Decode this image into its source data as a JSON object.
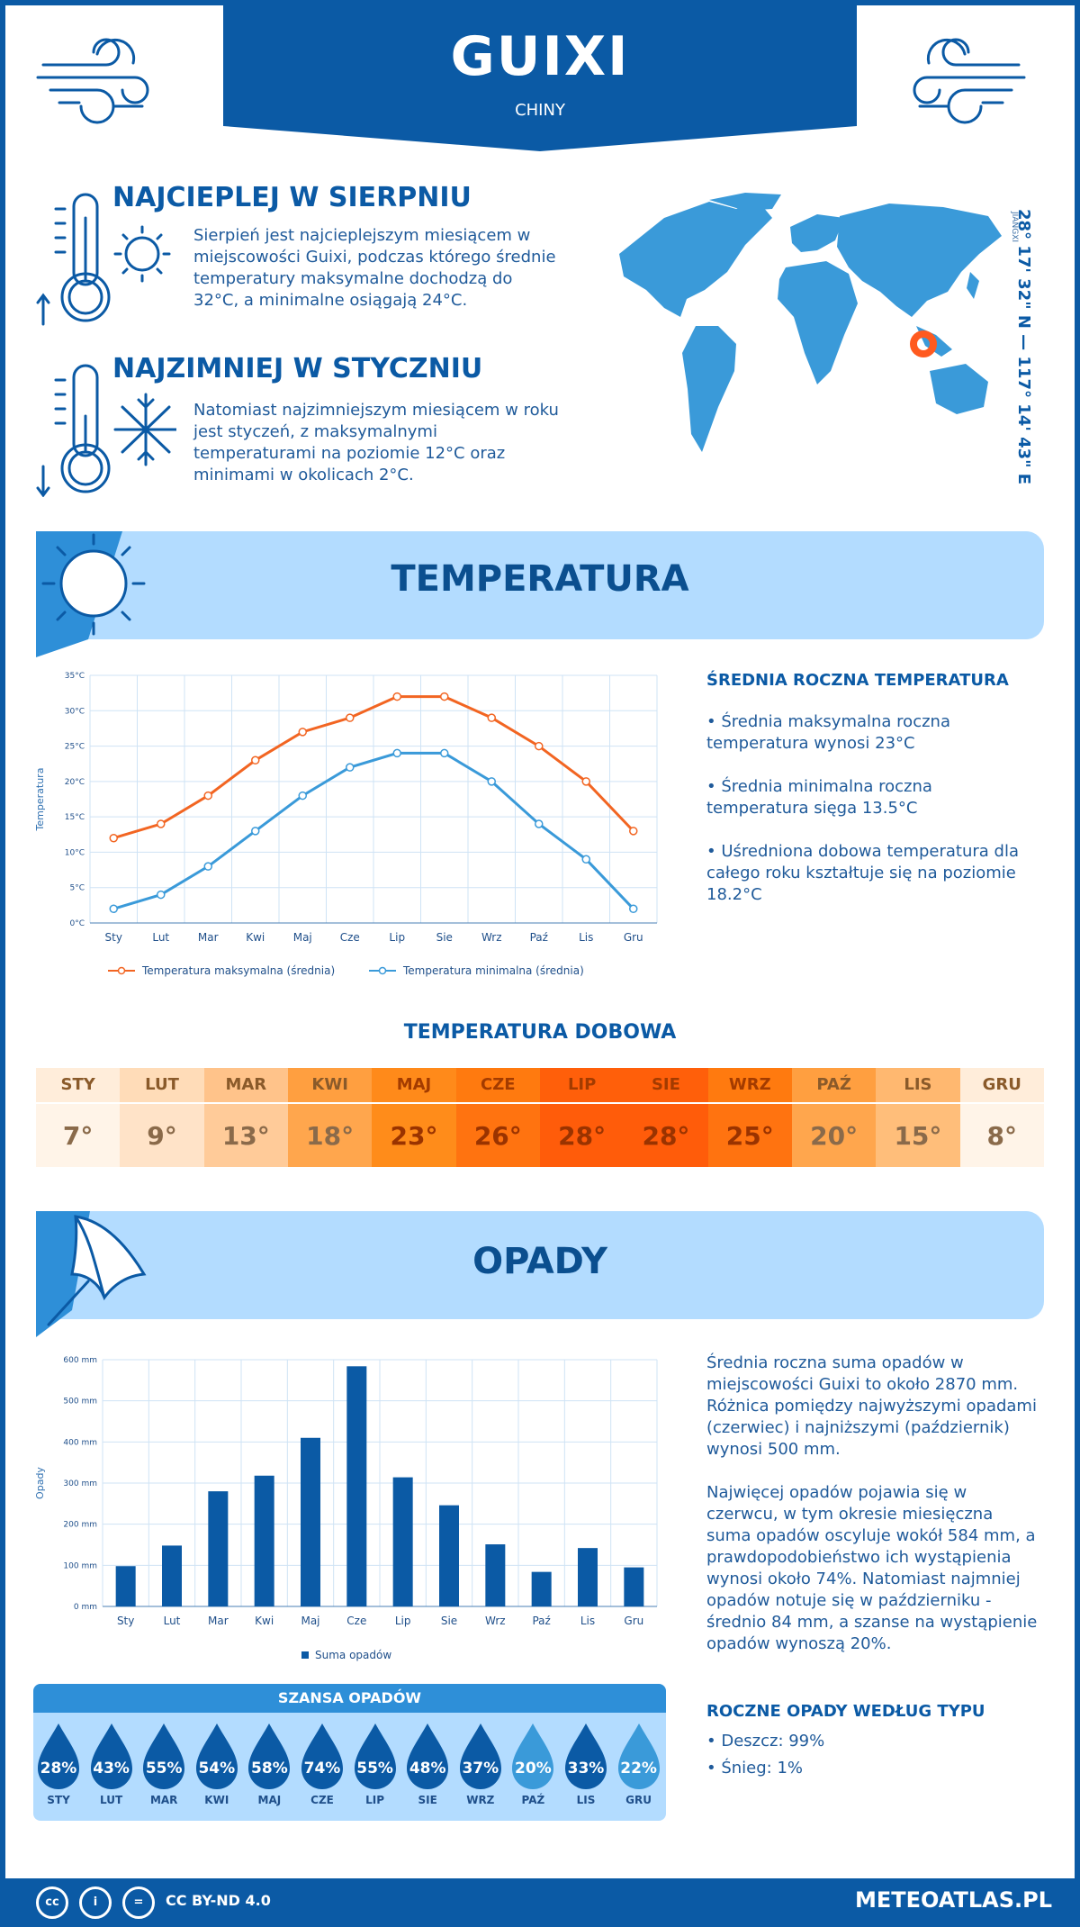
{
  "header": {
    "city": "GUIXI",
    "country": "CHINY"
  },
  "warmest": {
    "title": "NAJCIEPLEJ W SIERPNIU",
    "text": "Sierpień jest najcieplejszym miesiącem w miejscowości Guixi, podczas którego średnie temperatury maksymalne dochodzą do 32°C, a minimalne osiągają 24°C."
  },
  "coldest": {
    "title": "NAJZIMNIEJ W STYCZNIU",
    "text": "Natomiast najzimniejszym miesiącem w roku jest styczeń, z maksymalnymi temperaturami na poziomie 12°C oraz minimami w okolicach 2°C."
  },
  "location": {
    "coords": "28° 17' 32\" N — 117° 14' 43\" E",
    "province": "JIANGXI"
  },
  "temperature_section": {
    "title": "TEMPERATURA"
  },
  "annual_temp": {
    "title": "ŚREDNIA ROCZNA TEMPERATURA",
    "max": "• Średnia maksymalna roczna temperatura wynosi 23°C",
    "min": "• Średnia minimalna roczna temperatura sięga 13.5°C",
    "avg": "• Uśredniona dobowa temperatura dla całego roku kształtuje się na poziomie 18.2°C"
  },
  "daily": {
    "title": "TEMPERATURA DOBOWA",
    "months": [
      "STY",
      "LUT",
      "MAR",
      "KWI",
      "MAJ",
      "CZE",
      "LIP",
      "SIE",
      "WRZ",
      "PAŹ",
      "LIS",
      "GRU"
    ],
    "values": [
      "7°",
      "9°",
      "13°",
      "18°",
      "23°",
      "26°",
      "28°",
      "28°",
      "25°",
      "20°",
      "15°",
      "8°"
    ],
    "head_colors": [
      "#ffedda",
      "#ffdcb8",
      "#ffc38a",
      "#ff9f40",
      "#ff8a1a",
      "#ff7a0f",
      "#ff5f0a",
      "#ff5f0a",
      "#ff7a0f",
      "#ff9f40",
      "#ffb870",
      "#ffedda"
    ],
    "val_colors": [
      "#fff4e8",
      "#ffe3c8",
      "#ffcb99",
      "#ffa64d",
      "#ff8c1a",
      "#ff7310",
      "#ff5c0a",
      "#ff5c0a",
      "#ff7310",
      "#ffa64d",
      "#ffbe7a",
      "#fff4e8"
    ]
  },
  "precip_section": {
    "title": "OPADY"
  },
  "precip_text": {
    "p1": "Średnia roczna suma opadów w miejscowości Guixi to około 2870 mm. Różnica pomiędzy najwyższymi opadami (czerwiec) i najniższymi (październik) wynosi 500 mm.",
    "p2": "Najwięcej opadów pojawia się w czerwcu, w tym okresie miesięczna suma opadów oscyluje wokół 584 mm, a prawdopodobieństwo ich wystąpienia wynosi około 74%. Natomiast najmniej opadów notuje się w październiku - średnio 84 mm, a szanse na wystąpienie opadów wynoszą 20%."
  },
  "precip_type": {
    "title": "ROCZNE OPADY WEDŁUG TYPU",
    "rain": "• Deszcz: 99%",
    "snow": "• Śnieg: 1%"
  },
  "chance": {
    "title": "SZANSA OPADÓW",
    "months": [
      "STY",
      "LUT",
      "MAR",
      "KWI",
      "MAJ",
      "CZE",
      "LIP",
      "SIE",
      "WRZ",
      "PAŹ",
      "LIS",
      "GRU"
    ],
    "values": [
      "28%",
      "43%",
      "55%",
      "54%",
      "58%",
      "74%",
      "55%",
      "48%",
      "37%",
      "20%",
      "33%",
      "22%"
    ],
    "levels": [
      "dark",
      "dark",
      "dark",
      "dark",
      "dark",
      "dark",
      "dark",
      "dark",
      "dark",
      "light",
      "dark",
      "light"
    ]
  },
  "footer": {
    "license": "CC BY-ND 4.0",
    "site": "METEOATLAS.PL"
  },
  "colors": {
    "brand": "#0b5aa5",
    "max_line": "#f26522",
    "min_line": "#3a9ad9",
    "bar": "#0b5aa5"
  },
  "chart_data": [
    {
      "type": "line",
      "ylabel": "Temperatura",
      "categories": [
        "Sty",
        "Lut",
        "Mar",
        "Kwi",
        "Maj",
        "Cze",
        "Lip",
        "Sie",
        "Wrz",
        "Paź",
        "Lis",
        "Gru"
      ],
      "yticks": [
        "0°C",
        "5°C",
        "10°C",
        "15°C",
        "20°C",
        "25°C",
        "30°C",
        "35°C"
      ],
      "ylim": [
        0,
        35
      ],
      "series": [
        {
          "name": "Temperatura maksymalna (średnia)",
          "values": [
            12,
            14,
            18,
            23,
            27,
            29,
            32,
            32,
            29,
            25,
            20,
            13
          ]
        },
        {
          "name": "Temperatura minimalna (średnia)",
          "values": [
            2,
            4,
            8,
            13,
            18,
            22,
            24,
            24,
            20,
            14,
            9,
            2
          ]
        }
      ]
    },
    {
      "type": "bar",
      "ylabel": "Opady",
      "categories": [
        "Sty",
        "Lut",
        "Mar",
        "Kwi",
        "Maj",
        "Cze",
        "Lip",
        "Sie",
        "Wrz",
        "Paź",
        "Lis",
        "Gru"
      ],
      "yticks": [
        "0 mm",
        "100 mm",
        "200 mm",
        "300 mm",
        "400 mm",
        "500 mm",
        "600 mm"
      ],
      "ylim": [
        0,
        600
      ],
      "series": [
        {
          "name": "Suma opadów",
          "values": [
            98,
            148,
            280,
            318,
            410,
            584,
            314,
            246,
            151,
            84,
            142,
            95
          ]
        }
      ]
    }
  ]
}
